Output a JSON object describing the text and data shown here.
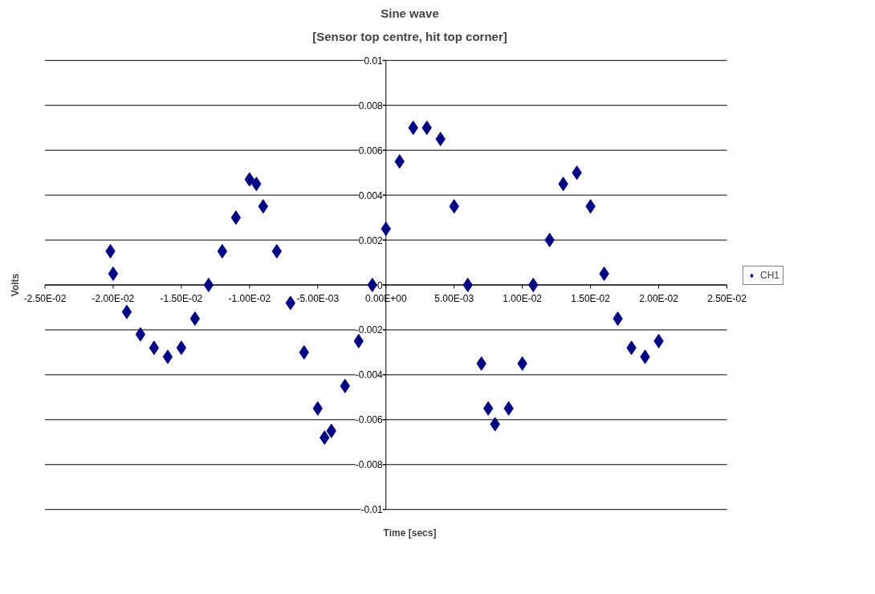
{
  "chart_data": {
    "type": "scatter",
    "title": "Sine wave",
    "subtitle": "[Sensor top centre, hit top corner]",
    "xlabel": "Time [secs]",
    "ylabel": "Volts",
    "xlim": [
      -0.025,
      0.025
    ],
    "xticks": [
      {
        "value": -0.025,
        "label": "-2.50E-02"
      },
      {
        "value": -0.02,
        "label": "-2.00E-02"
      },
      {
        "value": -0.015,
        "label": "-1.50E-02"
      },
      {
        "value": -0.01,
        "label": "-1.00E-02"
      },
      {
        "value": -0.005,
        "label": "-5.00E-03"
      },
      {
        "value": 0,
        "label": "0.00E+00"
      },
      {
        "value": 0.005,
        "label": "5.00E-03"
      },
      {
        "value": 0.01,
        "label": "1.00E-02"
      },
      {
        "value": 0.015,
        "label": "1.50E-02"
      },
      {
        "value": 0.02,
        "label": "2.00E-02"
      },
      {
        "value": 0.025,
        "label": "2.50E-02"
      }
    ],
    "ylim": [
      -0.01,
      0.01
    ],
    "yticks": [
      -0.01,
      -0.008,
      -0.006,
      -0.004,
      -0.002,
      0,
      0.002,
      0.004,
      0.006,
      0.008,
      0.01
    ],
    "grid": "y",
    "legend": "right",
    "marker": "diamond",
    "x": [
      -0.0202,
      -0.02,
      -0.019,
      -0.018,
      -0.017,
      -0.016,
      -0.015,
      -0.014,
      -0.013,
      -0.012,
      -0.011,
      -0.01,
      -0.0095,
      -0.009,
      -0.008,
      -0.007,
      -0.006,
      -0.005,
      -0.0045,
      -0.004,
      -0.003,
      -0.002,
      -0.001,
      0,
      0.001,
      0.002,
      0.003,
      0.004,
      0.005,
      0.006,
      0.007,
      0.0075,
      0.008,
      0.009,
      0.01,
      0.0108,
      0.012,
      0.013,
      0.014,
      0.015,
      0.016,
      0.017,
      0.018,
      0.019,
      0.02
    ],
    "series": [
      {
        "name": "CH1",
        "color": "#000080",
        "values": [
          0.0015,
          0.0005,
          -0.0012,
          -0.0022,
          -0.0028,
          -0.0032,
          -0.0028,
          -0.0015,
          0.0,
          0.0015,
          0.003,
          0.0047,
          0.0045,
          0.0035,
          0.0015,
          -0.0008,
          -0.003,
          -0.0055,
          -0.0068,
          -0.0065,
          -0.0045,
          -0.0025,
          0.0,
          0.0025,
          0.0055,
          0.007,
          0.007,
          0.0065,
          0.0035,
          0.0,
          -0.0035,
          -0.0055,
          -0.0062,
          -0.0055,
          -0.0035,
          0.0,
          0.002,
          0.0045,
          0.005,
          0.0035,
          0.0005,
          -0.0015,
          -0.0028,
          -0.0032,
          -0.0025
        ]
      }
    ]
  }
}
